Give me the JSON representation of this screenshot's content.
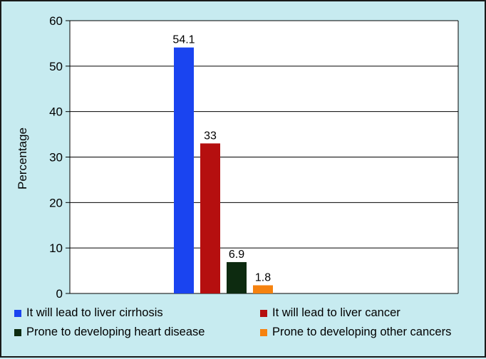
{
  "chart_data": {
    "type": "bar",
    "title": "",
    "xlabel": "",
    "ylabel": "Percentage",
    "ylim": [
      0,
      60
    ],
    "yticks": [
      0,
      10,
      20,
      30,
      40,
      50,
      60
    ],
    "grid": true,
    "legend_position": "bottom",
    "series": [
      {
        "name": "It will lead to liver cirrhosis",
        "value": 54.1,
        "label": "54.1",
        "color": "#1a44f0"
      },
      {
        "name": "It will lead to liver cancer",
        "value": 33,
        "label": "33",
        "color": "#b50f0f"
      },
      {
        "name": "Prone to developing heart disease",
        "value": 6.9,
        "label": "6.9",
        "color": "#0d2b10"
      },
      {
        "name": "Prone to developing other cancers",
        "value": 1.8,
        "label": "1.8",
        "color": "#f5820f"
      }
    ]
  }
}
